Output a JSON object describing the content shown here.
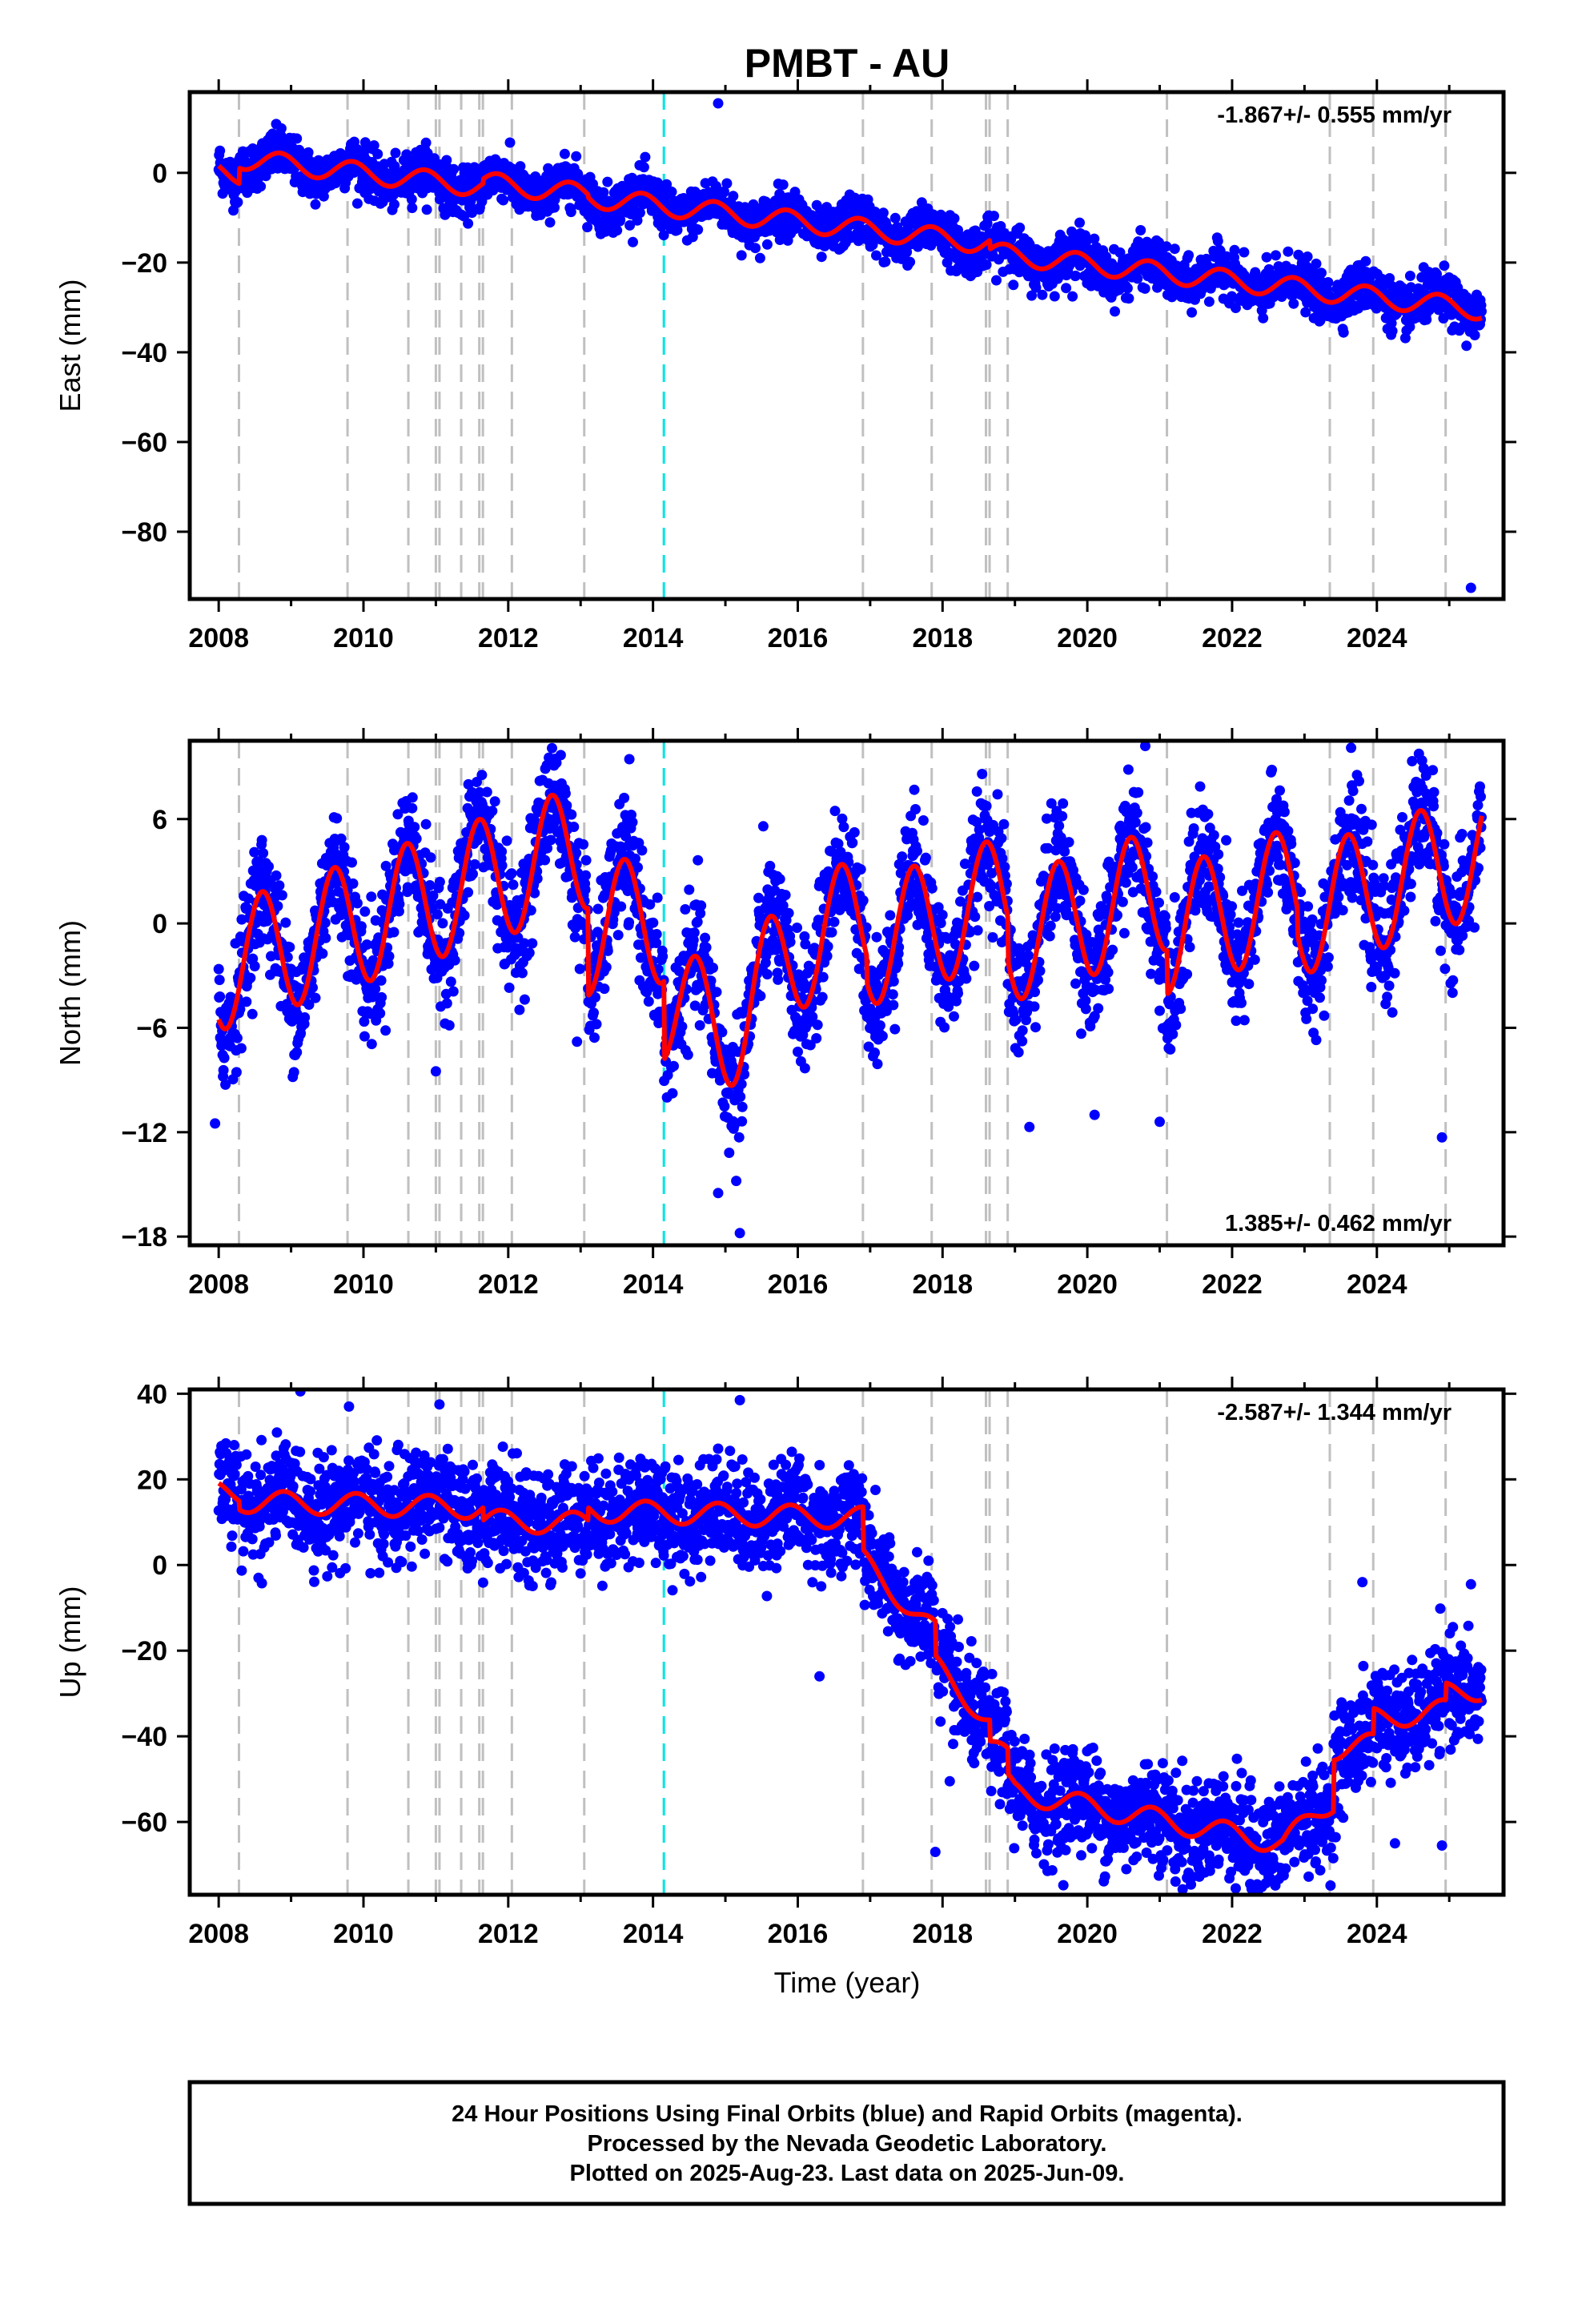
{
  "title": "PMBT - AU",
  "x_label": "Time (year)",
  "x_ticks": [
    "2008",
    "2010",
    "2012",
    "2014",
    "2016",
    "2018",
    "2020",
    "2022",
    "2024"
  ],
  "colors": {
    "points": "#0000ff",
    "model": "#ff0000",
    "equipment_lines": "#c0c0c0",
    "event_line": "#00e5e5",
    "frame": "#000000"
  },
  "footer": {
    "line1": "24 Hour Positions Using Final Orbits (blue) and Rapid Orbits (magenta).",
    "line2": "Processed by the Nevada Geodetic Laboratory.",
    "line3": "Plotted on 2025-Aug-23. Last data on 2025-Jun-09."
  },
  "chart_data": [
    {
      "type": "scatter",
      "component": "east",
      "ylabel": "East (mm)",
      "rate_text": "-1.867+/- 0.555 mm/yr",
      "xlim": [
        2007.6,
        2025.75
      ],
      "ylim": [
        -95,
        18
      ],
      "y_ticks": [
        0,
        -20,
        -40,
        -60,
        -80
      ],
      "y_tick_labels": [
        "0",
        "−20",
        "−40",
        "−60",
        "−80"
      ],
      "model": {
        "t0": 2008.0,
        "start": 2008.0,
        "end": 2025.45,
        "offset": 0.2,
        "rate": -1.867,
        "annual_amp": 2.3,
        "annual_phase_year": 2008.85,
        "offsets": [
          {
            "t": 2008.28,
            "dy": 3.5
          },
          {
            "t": 2011.65,
            "dy": 1.0
          },
          {
            "t": 2013.1,
            "dy": -0.6
          },
          {
            "t": 2018.65,
            "dy": -2.0
          }
        ]
      },
      "scatter": {
        "sigma": 2.6,
        "daily_step": 2
      },
      "outliers": [
        [
          2024.95,
          -27.5
        ],
        [
          2025.3,
          -92.5
        ],
        [
          2015.9,
          -12.5
        ],
        [
          2017.05,
          -13.5
        ],
        [
          2012.4,
          -6.5
        ],
        [
          2014.9,
          15.5
        ],
        [
          2024.4,
          -26.5
        ]
      ]
    },
    {
      "type": "scatter",
      "component": "north",
      "ylabel": "North (mm)",
      "rate_text": "1.385+/- 0.462 mm/yr",
      "xlim": [
        2007.6,
        2025.75
      ],
      "ylim": [
        -18.5,
        10.5
      ],
      "y_ticks": [
        6,
        0,
        -6,
        -12,
        -18
      ],
      "y_tick_labels": [
        "6",
        "0",
        "−6",
        "−12",
        "−18"
      ],
      "model": {
        "t0": 2008.0,
        "start": 2008.0,
        "end": 2025.45,
        "offset": -2.6,
        "rate": 1.385,
        "annual_amp": 3.6,
        "annual_phase_year": 2008.6,
        "offsets": [
          {
            "t": 2013.1,
            "dy": -5.0
          },
          {
            "t": 2013.3,
            "dy": 0.0
          },
          {
            "t": 2014.15,
            "dy": -4.5
          },
          {
            "t": 2016.95,
            "dy": -1.5
          },
          {
            "t": 2018.9,
            "dy": -2.5
          },
          {
            "t": 2021.1,
            "dy": -2.5
          },
          {
            "t": 2022.9,
            "dy": -1.5
          }
        ],
        "bumps": [
          {
            "center": 2015.0,
            "width": 1.0,
            "dy": -3.5
          }
        ]
      },
      "scatter": {
        "sigma": 1.7,
        "daily_step": 2
      },
      "outliers": [
        [
          2007.95,
          -11.5
        ],
        [
          2015.2,
          -17.8
        ],
        [
          2015.15,
          -14.8
        ],
        [
          2011.0,
          -8.5
        ],
        [
          2019.2,
          -11.7
        ],
        [
          2024.9,
          -12.3
        ],
        [
          2020.1,
          -11.0
        ],
        [
          2021.0,
          -11.4
        ],
        [
          2014.9,
          -15.5
        ],
        [
          2020.8,
          10.2
        ],
        [
          2012.95,
          -6.8
        ]
      ]
    },
    {
      "type": "scatter",
      "component": "up",
      "ylabel": "Up (mm)",
      "rate_text": "-2.587+/- 1.344 mm/yr",
      "xlim": [
        2007.6,
        2025.75
      ],
      "ylim": [
        -77,
        41
      ],
      "y_ticks": [
        40,
        20,
        0,
        -20,
        -40,
        -60
      ],
      "y_tick_labels": [
        "40",
        "20",
        "0",
        "−20",
        "−40",
        "−60"
      ],
      "model": {
        "t0": 2008.0,
        "start": 2008.0,
        "end": 2025.45,
        "offset": 17.0,
        "rate": -0.45,
        "annual_amp": 2.6,
        "annual_phase_year": 2008.9,
        "breaks": [
          [
            2016.9,
            3.0
          ],
          [
            2019.0,
            -32.0
          ],
          [
            2022.7,
            -44.0
          ],
          [
            2023.4,
            -34.0
          ],
          [
            2025.45,
            -30.0
          ]
        ],
        "offsets": [
          {
            "t": 2008.28,
            "dy": -2.0
          },
          {
            "t": 2011.65,
            "dy": -3.0
          },
          {
            "t": 2013.1,
            "dy": 3.0
          },
          {
            "t": 2017.9,
            "dy": -8.0
          },
          {
            "t": 2018.65,
            "dy": -5.0
          },
          {
            "t": 2018.9,
            "dy": -6.0
          },
          {
            "t": 2023.4,
            "dy": 12.0
          },
          {
            "t": 2023.95,
            "dy": 6.0
          },
          {
            "t": 2024.95,
            "dy": 4.0
          }
        ]
      },
      "scatter": {
        "sigma": 6.0,
        "daily_step": 2
      },
      "outliers": [
        [
          2015.2,
          38.5
        ],
        [
          2011.05,
          37.5
        ],
        [
          2009.8,
          37.0
        ],
        [
          2022.05,
          -75.5
        ],
        [
          2025.3,
          -4.5
        ],
        [
          2023.8,
          -4.0
        ],
        [
          2016.3,
          -26.0
        ],
        [
          2017.9,
          -67.0
        ],
        [
          2024.9,
          -65.5
        ],
        [
          2022.25,
          -74.5
        ],
        [
          2008.55,
          -3.0
        ],
        [
          2024.25,
          -65.0
        ],
        [
          2018.1,
          -50.5
        ]
      ]
    }
  ],
  "equipment_line_years": [
    2008.28,
    2009.78,
    2010.62,
    2011.0,
    2011.05,
    2011.35,
    2011.6,
    2011.65,
    2012.05,
    2013.05,
    2016.9,
    2017.85,
    2018.6,
    2018.65,
    2018.9,
    2021.1,
    2023.35,
    2023.95,
    2024.95
  ],
  "event_line_year": 2014.15
}
